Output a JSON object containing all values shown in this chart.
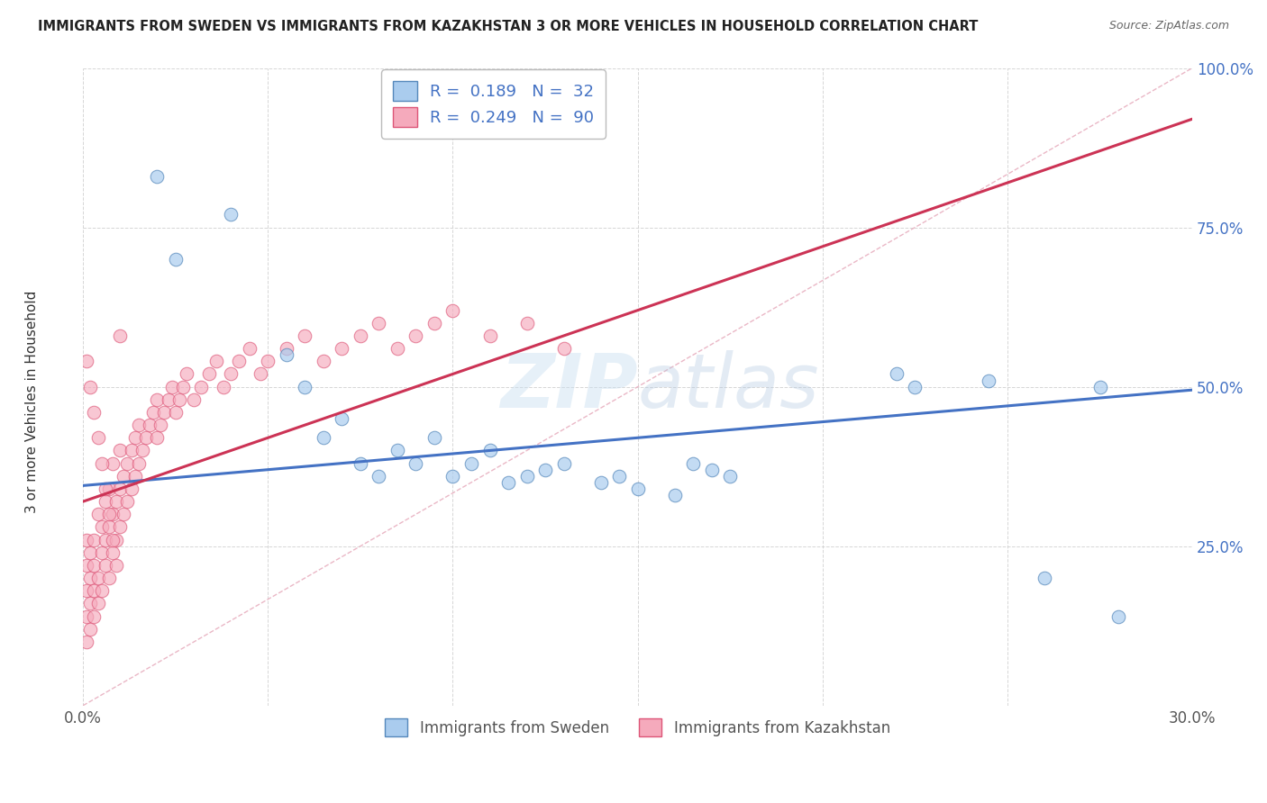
{
  "title": "IMMIGRANTS FROM SWEDEN VS IMMIGRANTS FROM KAZAKHSTAN 3 OR MORE VEHICLES IN HOUSEHOLD CORRELATION CHART",
  "source": "Source: ZipAtlas.com",
  "ylabel": "3 or more Vehicles in Household",
  "legend_label1": "Immigrants from Sweden",
  "legend_label2": "Immigrants from Kazakhstan",
  "R1": 0.189,
  "N1": 32,
  "R2": 0.249,
  "N2": 90,
  "xlim": [
    0.0,
    0.3
  ],
  "ylim": [
    0.0,
    1.0
  ],
  "xticks": [
    0.0,
    0.05,
    0.1,
    0.15,
    0.2,
    0.25,
    0.3
  ],
  "yticks": [
    0.0,
    0.25,
    0.5,
    0.75,
    1.0
  ],
  "xticklabels": [
    "0.0%",
    "",
    "",
    "",
    "",
    "",
    "30.0%"
  ],
  "yticklabels": [
    "",
    "25.0%",
    "50.0%",
    "75.0%",
    "100.0%"
  ],
  "color_sweden": "#aaccee",
  "color_kazakhstan": "#f5aabc",
  "color_sweden_dark": "#5588bb",
  "color_kazakhstan_dark": "#dd5577",
  "color_trend_sweden": "#4472c4",
  "color_trend_kazakhstan": "#cc3355",
  "color_diag": "#e8a0b0",
  "watermark_zip": "ZIP",
  "watermark_atlas": "atlas",
  "sweden_x": [
    0.02,
    0.025,
    0.04,
    0.055,
    0.06,
    0.065,
    0.07,
    0.075,
    0.08,
    0.085,
    0.09,
    0.095,
    0.1,
    0.105,
    0.11,
    0.115,
    0.12,
    0.125,
    0.13,
    0.14,
    0.145,
    0.15,
    0.16,
    0.165,
    0.17,
    0.175,
    0.22,
    0.225,
    0.245,
    0.26,
    0.275,
    0.28
  ],
  "sweden_y": [
    0.83,
    0.7,
    0.77,
    0.55,
    0.5,
    0.42,
    0.45,
    0.38,
    0.36,
    0.4,
    0.38,
    0.42,
    0.36,
    0.38,
    0.4,
    0.35,
    0.36,
    0.37,
    0.38,
    0.35,
    0.36,
    0.34,
    0.33,
    0.38,
    0.37,
    0.36,
    0.52,
    0.5,
    0.51,
    0.2,
    0.5,
    0.14
  ],
  "kazakhstan_x": [
    0.001,
    0.001,
    0.001,
    0.001,
    0.001,
    0.002,
    0.002,
    0.002,
    0.002,
    0.003,
    0.003,
    0.003,
    0.003,
    0.004,
    0.004,
    0.004,
    0.005,
    0.005,
    0.005,
    0.006,
    0.006,
    0.006,
    0.007,
    0.007,
    0.007,
    0.008,
    0.008,
    0.008,
    0.009,
    0.009,
    0.01,
    0.01,
    0.01,
    0.011,
    0.011,
    0.012,
    0.012,
    0.013,
    0.013,
    0.014,
    0.014,
    0.015,
    0.015,
    0.016,
    0.017,
    0.018,
    0.019,
    0.02,
    0.02,
    0.021,
    0.022,
    0.023,
    0.024,
    0.025,
    0.026,
    0.027,
    0.028,
    0.03,
    0.032,
    0.034,
    0.036,
    0.038,
    0.04,
    0.042,
    0.045,
    0.048,
    0.05,
    0.055,
    0.06,
    0.065,
    0.07,
    0.075,
    0.08,
    0.085,
    0.09,
    0.095,
    0.1,
    0.11,
    0.12,
    0.13,
    0.001,
    0.002,
    0.003,
    0.004,
    0.005,
    0.006,
    0.007,
    0.008,
    0.009,
    0.01
  ],
  "kazakhstan_y": [
    0.18,
    0.14,
    0.22,
    0.1,
    0.26,
    0.2,
    0.16,
    0.24,
    0.12,
    0.18,
    0.22,
    0.26,
    0.14,
    0.2,
    0.3,
    0.16,
    0.24,
    0.18,
    0.28,
    0.22,
    0.26,
    0.32,
    0.2,
    0.28,
    0.34,
    0.24,
    0.3,
    0.38,
    0.26,
    0.32,
    0.28,
    0.34,
    0.4,
    0.3,
    0.36,
    0.32,
    0.38,
    0.34,
    0.4,
    0.36,
    0.42,
    0.38,
    0.44,
    0.4,
    0.42,
    0.44,
    0.46,
    0.42,
    0.48,
    0.44,
    0.46,
    0.48,
    0.5,
    0.46,
    0.48,
    0.5,
    0.52,
    0.48,
    0.5,
    0.52,
    0.54,
    0.5,
    0.52,
    0.54,
    0.56,
    0.52,
    0.54,
    0.56,
    0.58,
    0.54,
    0.56,
    0.58,
    0.6,
    0.56,
    0.58,
    0.6,
    0.62,
    0.58,
    0.6,
    0.56,
    0.54,
    0.5,
    0.46,
    0.42,
    0.38,
    0.34,
    0.3,
    0.26,
    0.22,
    0.58
  ],
  "trend_sweden_x0": 0.0,
  "trend_sweden_y0": 0.345,
  "trend_sweden_x1": 0.3,
  "trend_sweden_y1": 0.495,
  "trend_kaz_x0": 0.0,
  "trend_kaz_y0": 0.32,
  "trend_kaz_x1": 0.09,
  "trend_kaz_y1": 0.5
}
